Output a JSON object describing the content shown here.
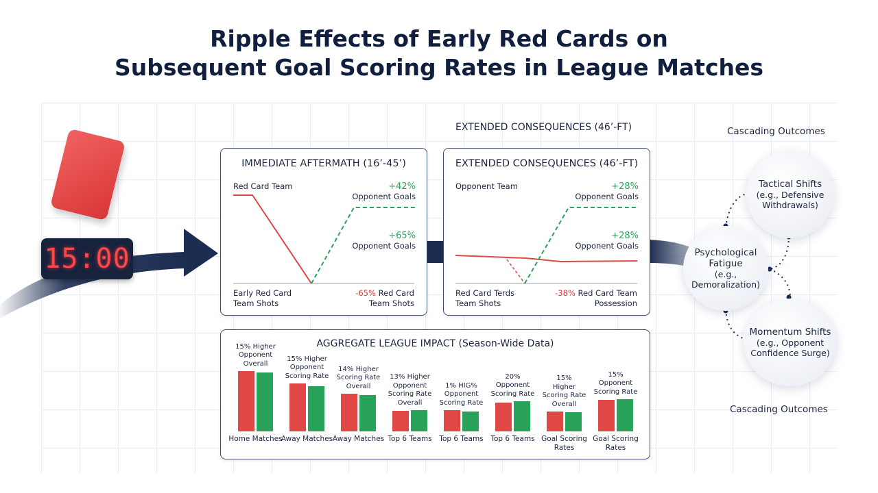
{
  "title_line1": "Ripple Effects of Early Red Cards on",
  "title_line2": "Subsequent Goal Scoring Rates in League Matches",
  "timer": "15:00",
  "extended_heading": "EXTENDED CONSEQUENCES (46’-FT)",
  "cascading_top": "Cascading Outcomes",
  "cascading_bottom": "Cascading Outcomes",
  "colors": {
    "red": "#e04848",
    "green": "#2aa35a",
    "navy": "#1c2d52"
  },
  "panel1": {
    "title": "IMMEDIATE AFTERMATH (16’-45’)",
    "team_label": "Red Card Team",
    "g1_value": "+42%",
    "g1_label": "Opponent Goals",
    "g2_value": "+65%",
    "g2_label": "Opponent Goals",
    "bl_line1": "Early Red Card",
    "bl_line2": "Team Shots",
    "br_value": "-65%",
    "br_label1": "Red Card",
    "br_label2": "Team Shots"
  },
  "panel2": {
    "title": "EXTENDED CONSEQUENCES (46’-FT)",
    "team_label": "Opponent Team",
    "g1_value": "+28%",
    "g1_label": "Opponent Goals",
    "g2_value": "+28%",
    "g2_label": "Opponent Goals",
    "bl_line1": "Red Card Terds",
    "bl_line2": "Team Shots",
    "br_value": "-38%",
    "br_label1": "Red Card Team",
    "br_label2": "Possession"
  },
  "bubbles": {
    "tactical": {
      "title": "Tactical Shifts",
      "l1": "(e.g., Defensive",
      "l2": "Withdrawals)"
    },
    "psych": {
      "title1": "Psychological",
      "title2": "Fatigue",
      "l1": "(e.g., Demoralization)"
    },
    "momentum": {
      "title": "Momentum Shifts",
      "l1": "(e.g., Opponent",
      "l2": "Confidence Surge)"
    }
  },
  "chart_data": {
    "type": "bar",
    "title": "AGGREGATE LEAGUE IMPACT (Season-Wide Data)",
    "categories": [
      [
        "Home Matches"
      ],
      [
        "Away Matches"
      ],
      [
        "Away Matches"
      ],
      [
        "Top 6 Teams"
      ],
      [
        "Top 6 Teams"
      ],
      [
        "Top 6 Teams"
      ],
      [
        "Goal Scoring",
        "Rates"
      ],
      [
        "Goal Scoring",
        "Rates"
      ]
    ],
    "bar_labels": [
      [
        "15% Higher",
        "Opponent",
        "Overall"
      ],
      [
        "15% Higher",
        "Opponent",
        "Scoring Rate"
      ],
      [
        "14% Higher",
        "Scoring Rate",
        "Overall"
      ],
      [
        "13% Higher",
        "Opponent",
        "Scoring Rate",
        "Overall"
      ],
      [
        "1% HIG%",
        "Opponent",
        "Scoring Rate"
      ],
      [
        "20%",
        "Opponent",
        "Scoring Rate"
      ],
      [
        "15%",
        "Higher",
        "Scoring Rate",
        "Overall"
      ],
      [
        "15%",
        "Opponent",
        "Scoring Rate"
      ]
    ],
    "series": [
      {
        "color": "#e04848",
        "values": [
          88,
          70,
          55,
          30,
          31,
          42,
          29,
          46
        ]
      },
      {
        "color": "#2aa35a",
        "values": [
          86,
          66,
          53,
          31,
          29,
          44,
          28,
          47
        ]
      }
    ],
    "ylim": [
      0,
      100
    ],
    "grid": false
  }
}
